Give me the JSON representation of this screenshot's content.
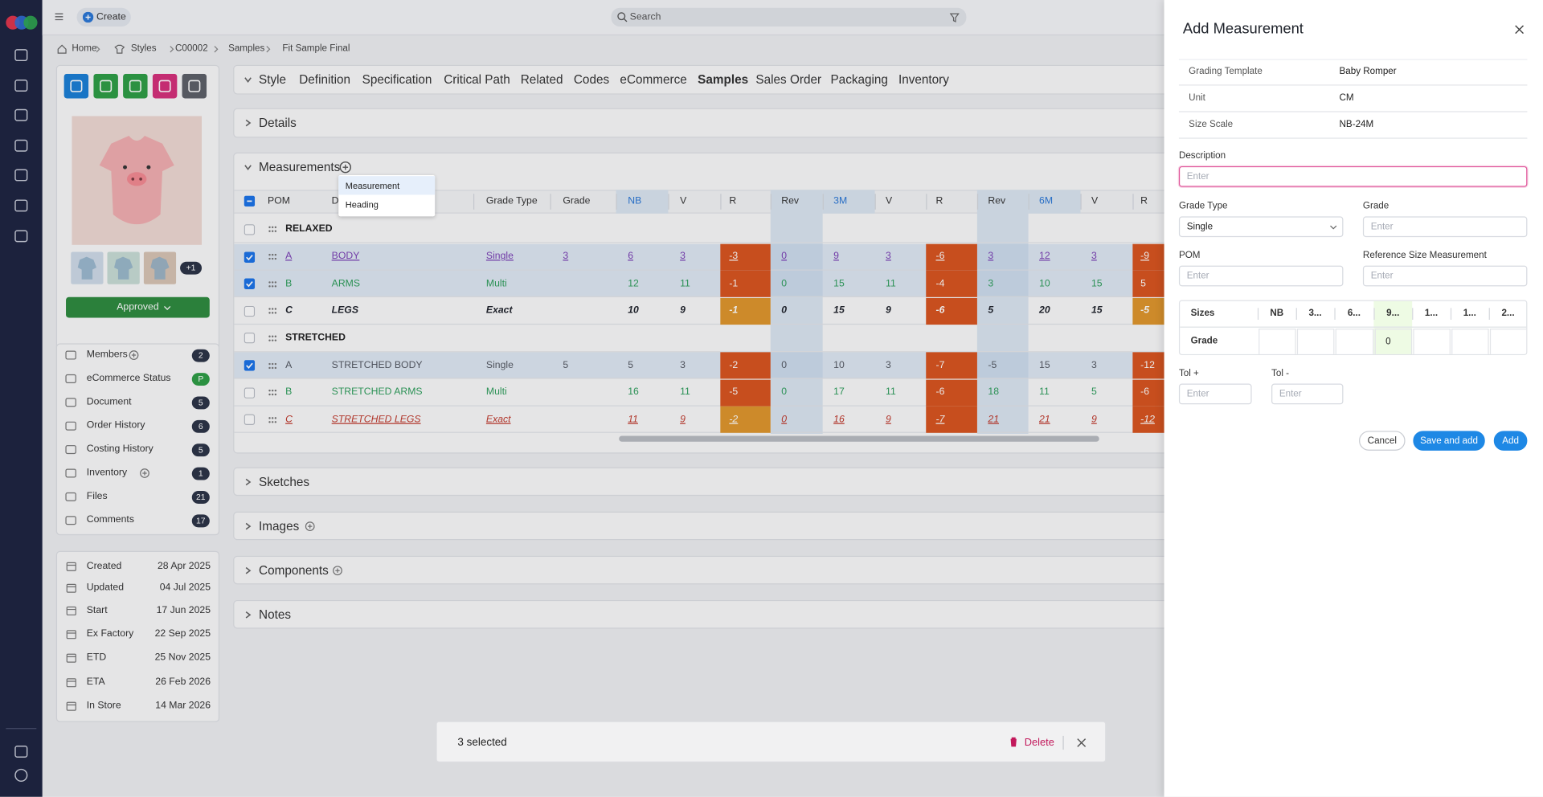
{
  "topbar": {
    "create": "Create",
    "search": "Search"
  },
  "breadcrumb": [
    "Home",
    "Styles",
    "C00002",
    "Samples",
    "Fit Sample Final"
  ],
  "tabs": [
    "Style",
    "Definition",
    "Specification",
    "Critical Path",
    "Related",
    "Codes",
    "eCommerce",
    "Samples",
    "Sales Order",
    "Packaging",
    "Inventory"
  ],
  "left_panel": {
    "extra_images": "+1",
    "status": "Approved",
    "menu": [
      {
        "label": "Members",
        "badge": 2,
        "addable": true
      },
      {
        "label": "eCommerce Status",
        "badge": "P",
        "badge_color": "#2e9e45"
      },
      {
        "label": "Document",
        "badge": 5
      },
      {
        "label": "Order History",
        "badge": 6
      },
      {
        "label": "Costing History",
        "badge": 5
      },
      {
        "label": "Inventory",
        "badge": 1,
        "addable": true
      },
      {
        "label": "Files",
        "badge": 21
      },
      {
        "label": "Comments",
        "badge": 17
      }
    ],
    "dates": [
      {
        "label": "Created",
        "value": "28 Apr 2025"
      },
      {
        "label": "Updated",
        "value": "04 Jul 2025"
      },
      {
        "label": "Start",
        "value": "17 Jun 2025"
      },
      {
        "label": "Ex Factory",
        "value": "22 Sep 2025"
      },
      {
        "label": "ETD",
        "value": "25 Nov 2025"
      },
      {
        "label": "ETA",
        "value": "26 Feb 2026"
      },
      {
        "label": "In Store",
        "value": "14 Mar 2026"
      }
    ]
  },
  "sections": {
    "details": "Details",
    "measurements": "Measurements",
    "others": [
      {
        "title": "Sketches"
      },
      {
        "title": "Images",
        "addable": true
      },
      {
        "title": "Components",
        "addable": true
      },
      {
        "title": "Notes"
      }
    ]
  },
  "add_menu": [
    "Measurement",
    "Heading"
  ],
  "measurements": {
    "columns": [
      "POM",
      "Description",
      "Grade Type",
      "Grade",
      "NB",
      "V",
      "R",
      "Rev",
      "3M",
      "V",
      "R",
      "Rev",
      "6M",
      "V",
      "R"
    ],
    "groups": [
      {
        "name": "RELAXED",
        "rows": [
          {
            "pom": "A",
            "description": "BODY",
            "grade_type": "Single",
            "grade": 3,
            "cells": [
              6,
              3,
              -3,
              0,
              9,
              3,
              -6,
              3,
              12,
              3,
              -9
            ],
            "selected": true,
            "color": "#7a3fb5",
            "underline": true,
            "r_colors": [
              "#d9541e",
              "#d9541e",
              "#d9541e"
            ]
          },
          {
            "pom": "B",
            "description": "ARMS",
            "grade_type": "Multi",
            "cells": [
              12,
              11,
              -1,
              0,
              15,
              11,
              -4,
              3,
              10,
              15,
              5
            ],
            "selected": true,
            "color": "#2e9e5b",
            "r_colors": [
              "#d9541e",
              "#d9541e",
              "#d9541e"
            ]
          },
          {
            "pom": "C",
            "description": "LEGS",
            "grade_type": "Exact",
            "cells": [
              10,
              9,
              -1,
              0,
              15,
              9,
              -6,
              5,
              20,
              15,
              -5
            ],
            "selected": false,
            "color": "#1f232b",
            "bold": true,
            "italic": true,
            "r_colors": [
              "#e0962b",
              "#d9541e",
              "#e0962b"
            ]
          }
        ]
      },
      {
        "name": "STRETCHED",
        "rows": [
          {
            "pom": "A",
            "description": "STRETCHED BODY",
            "grade_type": "Single",
            "grade": 5,
            "cells": [
              5,
              3,
              -2,
              0,
              10,
              3,
              -7,
              -5,
              15,
              3,
              -12
            ],
            "selected": true,
            "color": "#555a63",
            "r_colors": [
              "#d9541e",
              "#d9541e",
              "#d9541e"
            ]
          },
          {
            "pom": "B",
            "description": "STRETCHED ARMS",
            "grade_type": "Multi",
            "cells": [
              16,
              11,
              -5,
              0,
              17,
              11,
              -6,
              18,
              11,
              5,
              -6
            ],
            "selected": false,
            "color": "#2e9e5b",
            "r_colors": [
              "#d9541e",
              "#d9541e",
              "#d9541e"
            ]
          },
          {
            "pom": "C",
            "description": "STRETCHED LEGS",
            "grade_type": "Exact",
            "cells": [
              11,
              9,
              -2,
              0,
              16,
              9,
              -7,
              21,
              21,
              9,
              -12
            ],
            "selected": false,
            "color": "#c0392b",
            "italic": true,
            "underline": true,
            "r_colors": [
              "#e0962b",
              "#d9541e",
              "#d9541e"
            ]
          }
        ]
      }
    ]
  },
  "selection_bar": {
    "count": "3 selected",
    "delete": "Delete"
  },
  "drawer": {
    "title": "Add Measurement",
    "info": [
      {
        "label": "Grading Template",
        "value": "Baby Romper"
      },
      {
        "label": "Unit",
        "value": "CM"
      },
      {
        "label": "Size Scale",
        "value": "NB-24M"
      }
    ],
    "description": {
      "label": "Description",
      "placeholder": "Enter"
    },
    "grade_type": {
      "label": "Grade Type",
      "value": "Single"
    },
    "grade": {
      "label": "Grade",
      "placeholder": "Enter"
    },
    "pom": {
      "label": "POM",
      "placeholder": "Enter"
    },
    "reference_size": {
      "label": "Reference Size Measurement",
      "placeholder": "Enter"
    },
    "sizes_table": {
      "header": "Sizes",
      "sizes": [
        "NB",
        "3...",
        "6...",
        "9...",
        "1...",
        "1...",
        "2..."
      ],
      "row_label": "Grade",
      "values": [
        null,
        null,
        null,
        0,
        null,
        null,
        null
      ],
      "highlight_color": "#eefbe4"
    },
    "tol_plus": {
      "label": "Tol +",
      "placeholder": "Enter"
    },
    "tol_minus": {
      "label": "Tol -",
      "placeholder": "Enter"
    },
    "buttons": {
      "cancel": "Cancel",
      "save_add": "Save and add",
      "add": "Add"
    }
  }
}
